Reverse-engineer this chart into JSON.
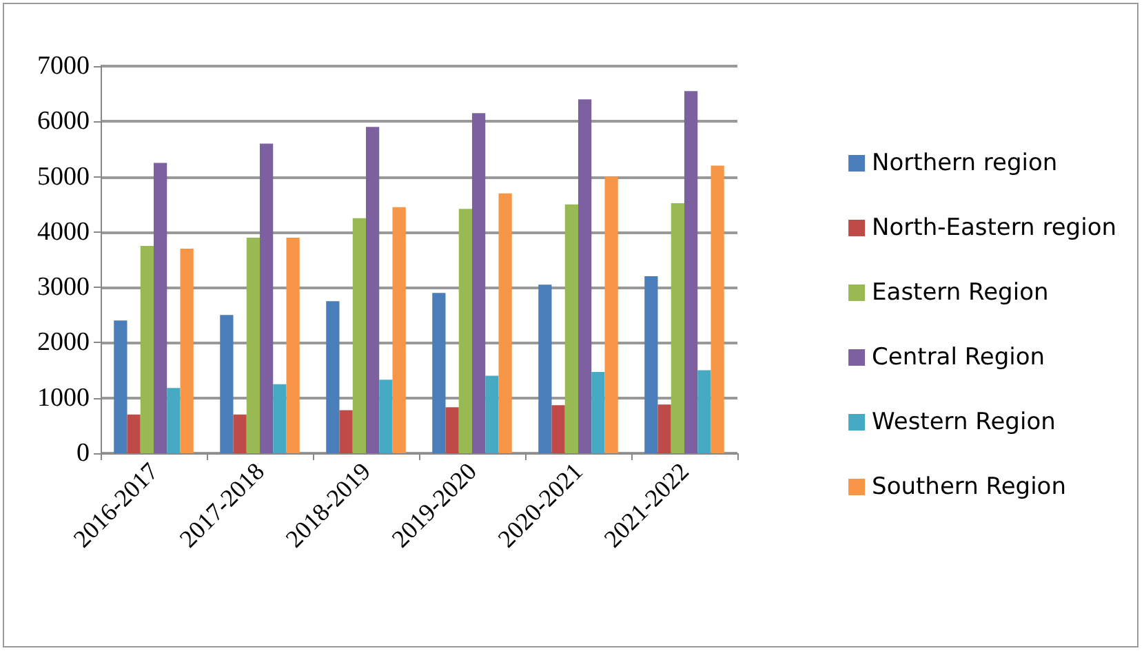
{
  "chart_data": {
    "type": "bar",
    "categories": [
      "2016-2017",
      "2017-2018",
      "2018-2019",
      "2019-2020",
      "2020-2021",
      "2021-2022"
    ],
    "series": [
      {
        "name": "Northern region",
        "color": "#4a7ebb",
        "values": [
          2400,
          2500,
          2750,
          2900,
          3050,
          3200
        ]
      },
      {
        "name": "North-Eastern region",
        "color": "#be4b48",
        "values": [
          700,
          700,
          780,
          830,
          870,
          880
        ]
      },
      {
        "name": "Eastern Region",
        "color": "#98b954",
        "values": [
          3750,
          3900,
          4250,
          4420,
          4500,
          4520
        ]
      },
      {
        "name": "Central Region",
        "color": "#7d60a0",
        "values": [
          5250,
          5600,
          5900,
          6150,
          6400,
          6550
        ]
      },
      {
        "name": "Western Region",
        "color": "#46aac5",
        "values": [
          1180,
          1250,
          1330,
          1400,
          1470,
          1500
        ]
      },
      {
        "name": "Southern Region",
        "color": "#f79646",
        "values": [
          3700,
          3900,
          4450,
          4700,
          5000,
          5200
        ]
      }
    ],
    "ylim": [
      0,
      7000
    ],
    "yticks": [
      0,
      1000,
      2000,
      3000,
      4000,
      5000,
      6000,
      7000
    ],
    "grid": "y",
    "legend": "right"
  }
}
